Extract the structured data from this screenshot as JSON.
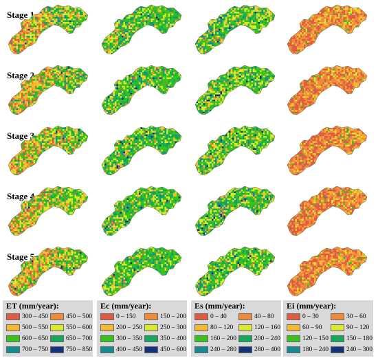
{
  "stages": [
    {
      "label": "Stage 1"
    },
    {
      "label": "Stage 2"
    },
    {
      "label": "Stage 3"
    },
    {
      "label": "Stage 4"
    },
    {
      "label": "Stage 5"
    }
  ],
  "variables": [
    {
      "key": "et",
      "legend_title": "ET (mm/year):",
      "classes": [
        {
          "label": "300 – 450",
          "color": "#e05a45"
        },
        {
          "label": "450 – 500",
          "color": "#f08b3c"
        },
        {
          "label": "500 – 550",
          "color": "#f4b931"
        },
        {
          "label": "550 – 600",
          "color": "#d7ea2c"
        },
        {
          "label": "600 – 650",
          "color": "#37c41a"
        },
        {
          "label": "650 – 700",
          "color": "#14a85e"
        },
        {
          "label": "700 – 750",
          "color": "#138c92"
        },
        {
          "label": "750 – 850",
          "color": "#14337f"
        }
      ]
    },
    {
      "key": "ec",
      "legend_title": "Ec (mm/year):",
      "classes": [
        {
          "label": "0 – 150",
          "color": "#e05a45"
        },
        {
          "label": "150 – 200",
          "color": "#f08b3c"
        },
        {
          "label": "200 – 250",
          "color": "#f4b931"
        },
        {
          "label": "250 – 300",
          "color": "#d7ea2c"
        },
        {
          "label": "300 – 350",
          "color": "#37c41a"
        },
        {
          "label": "350 – 400",
          "color": "#14a85e"
        },
        {
          "label": "400 – 450",
          "color": "#138c92"
        },
        {
          "label": "450 – 600",
          "color": "#14337f"
        }
      ]
    },
    {
      "key": "es",
      "legend_title": "Es (mm/year):",
      "classes": [
        {
          "label": "0 – 40",
          "color": "#e05a45"
        },
        {
          "label": "40 – 80",
          "color": "#f08b3c"
        },
        {
          "label": "80 – 120",
          "color": "#f4b931"
        },
        {
          "label": "120 – 160",
          "color": "#d7ea2c"
        },
        {
          "label": "160 – 200",
          "color": "#37c41a"
        },
        {
          "label": "200 – 240",
          "color": "#14a85e"
        },
        {
          "label": "240 – 280",
          "color": "#138c92"
        },
        {
          "label": "280 – 400",
          "color": "#14337f"
        }
      ]
    },
    {
      "key": "ei",
      "legend_title": "Ei (mm/year):",
      "classes": [
        {
          "label": "0 – 30",
          "color": "#e05a45"
        },
        {
          "label": "30 – 60",
          "color": "#f08b3c"
        },
        {
          "label": "60 – 90",
          "color": "#f4b931"
        },
        {
          "label": "90 – 120",
          "color": "#d7ea2c"
        },
        {
          "label": "120 – 150",
          "color": "#37c41a"
        },
        {
          "label": "150 – 180",
          "color": "#14a85e"
        },
        {
          "label": "180 – 240",
          "color": "#138c92"
        },
        {
          "label": "240 – 300",
          "color": "#14337f"
        }
      ]
    }
  ]
}
